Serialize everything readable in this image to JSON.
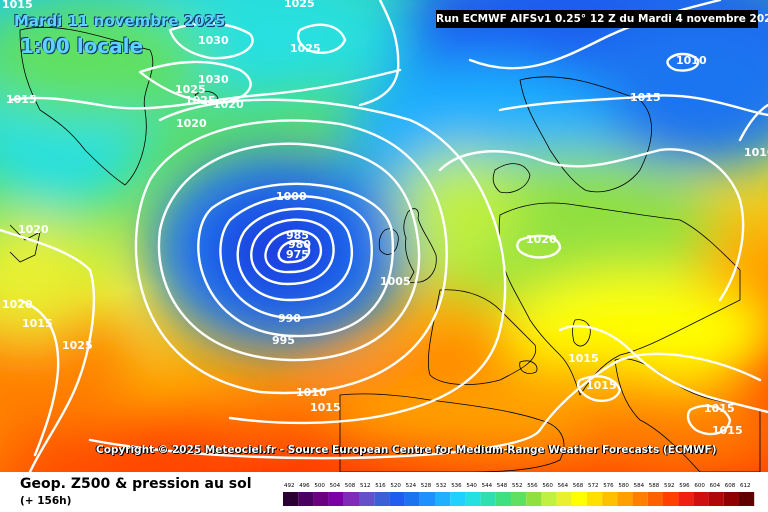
{
  "header": {
    "date": "Mardi 11 novembre 2025",
    "time": "1:00 locale",
    "run": "Run ECMWF AIFSv1 0.25° 12 Z du Mardi 4 novembre 2025"
  },
  "copyright": "Copyright © 2025 Meteociel.fr - Source European Centre for Medium-Range Weather Forecasts (ECMWF)",
  "legend": {
    "title": "Geop. Z500 & pression au sol",
    "subtitle": "(+ 156h)",
    "scale_ticks": [
      "492",
      "496",
      "500",
      "504",
      "508",
      "512",
      "516",
      "520",
      "524",
      "528",
      "532",
      "536",
      "540",
      "544",
      "548",
      "552",
      "556",
      "560",
      "564",
      "568",
      "572",
      "576",
      "580",
      "584",
      "588",
      "592",
      "596",
      "600",
      "604",
      "608",
      "612"
    ],
    "scale_colors": [
      "#2a0033",
      "#4a0060",
      "#6a0080",
      "#7a00a6",
      "#7f2ab8",
      "#6450c8",
      "#3d5fd6",
      "#1f5cf0",
      "#1a74f0",
      "#1e90ff",
      "#1fb0ff",
      "#20d0ff",
      "#25e0e0",
      "#2ee0b0",
      "#3fe080",
      "#60e060",
      "#90e040",
      "#c0f040",
      "#e8f030",
      "#ffff00",
      "#ffe000",
      "#ffc000",
      "#ffa000",
      "#ff8000",
      "#ff6000",
      "#ff4000",
      "#f02010",
      "#d01010",
      "#b00808",
      "#900000",
      "#600000"
    ]
  },
  "pressure_labels": [
    {
      "text": "1025"
    },
    {
      "text": "1030"
    },
    {
      "text": "1025"
    },
    {
      "text": "1030"
    },
    {
      "text": "1025"
    },
    {
      "text": "1025"
    },
    {
      "text": "1020"
    },
    {
      "text": "1020"
    },
    {
      "text": "1015"
    },
    {
      "text": "1010"
    },
    {
      "text": "1015"
    },
    {
      "text": "1010"
    },
    {
      "text": "1000"
    },
    {
      "text": "985"
    },
    {
      "text": "980"
    },
    {
      "text": "975"
    },
    {
      "text": "1020"
    },
    {
      "text": "1005"
    },
    {
      "text": "990"
    },
    {
      "text": "995"
    },
    {
      "text": "1020"
    },
    {
      "text": "1025"
    },
    {
      "text": "1010"
    },
    {
      "text": "1015"
    },
    {
      "text": "1015"
    },
    {
      "text": "1015"
    },
    {
      "text": "1015"
    },
    {
      "text": "1015"
    },
    {
      "text": "1015"
    },
    {
      "text": "1020"
    },
    {
      "text": "1015"
    }
  ]
}
